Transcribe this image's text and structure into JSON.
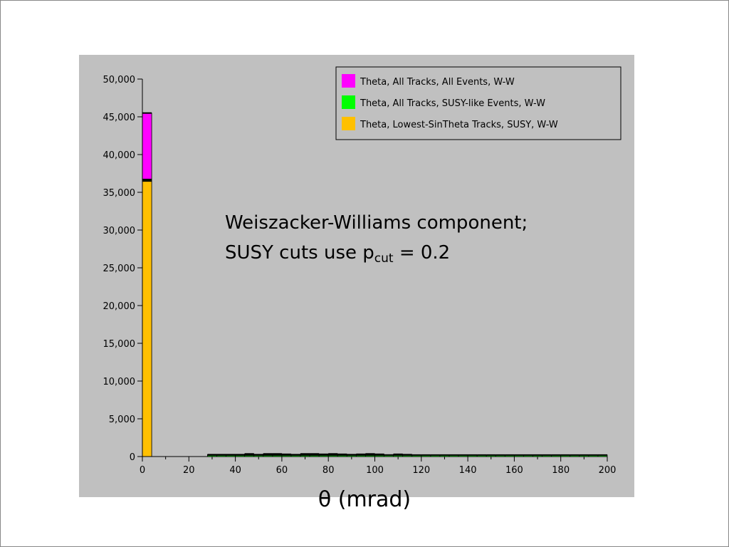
{
  "chart_data": {
    "type": "bar",
    "title": "",
    "xlabel": "θ (mrad)",
    "ylabel": "",
    "xlim": [
      0,
      200
    ],
    "ylim": [
      0,
      50000
    ],
    "x_ticks": [
      "0",
      "20",
      "40",
      "60",
      "80",
      "100",
      "120",
      "140",
      "160",
      "180",
      "200"
    ],
    "y_ticks": [
      "0",
      "5,000",
      "10,000",
      "15,000",
      "20,000",
      "25,000",
      "30,000",
      "35,000",
      "40,000",
      "45,000",
      "50,000"
    ],
    "y_tick_values": [
      0,
      5000,
      10000,
      15000,
      20000,
      25000,
      30000,
      35000,
      40000,
      45000,
      50000
    ],
    "bin_width": 4,
    "stacked": true,
    "grid": false,
    "legend_position": "top-right",
    "series": [
      {
        "name": "Theta, All Tracks, All Events, W-W",
        "color": "#ff00ff",
        "bins": [
          [
            0,
            45500
          ],
          [
            28,
            250
          ],
          [
            32,
            250
          ],
          [
            36,
            250
          ],
          [
            40,
            250
          ],
          [
            44,
            350
          ],
          [
            48,
            250
          ],
          [
            52,
            350
          ],
          [
            56,
            350
          ],
          [
            60,
            300
          ],
          [
            64,
            250
          ],
          [
            68,
            350
          ],
          [
            72,
            350
          ],
          [
            76,
            300
          ],
          [
            80,
            350
          ],
          [
            84,
            300
          ],
          [
            88,
            250
          ],
          [
            92,
            300
          ],
          [
            96,
            350
          ],
          [
            100,
            300
          ],
          [
            104,
            200
          ],
          [
            108,
            300
          ],
          [
            112,
            250
          ]
        ]
      },
      {
        "name": "Theta, All Tracks, SUSY-like Events, W-W",
        "color": "#00ff00",
        "bins": [
          [
            0,
            36700
          ],
          [
            28,
            200
          ],
          [
            32,
            200
          ],
          [
            36,
            200
          ],
          [
            40,
            200
          ],
          [
            44,
            200
          ],
          [
            48,
            200
          ],
          [
            52,
            200
          ],
          [
            56,
            200
          ],
          [
            60,
            200
          ],
          [
            64,
            200
          ],
          [
            68,
            200
          ],
          [
            72,
            200
          ],
          [
            76,
            200
          ],
          [
            80,
            200
          ],
          [
            84,
            200
          ],
          [
            88,
            200
          ],
          [
            92,
            200
          ],
          [
            96,
            200
          ],
          [
            100,
            200
          ],
          [
            104,
            200
          ],
          [
            108,
            200
          ],
          [
            112,
            200
          ],
          [
            116,
            200
          ],
          [
            120,
            200
          ],
          [
            124,
            200
          ],
          [
            128,
            200
          ],
          [
            132,
            200
          ],
          [
            136,
            200
          ],
          [
            140,
            200
          ],
          [
            144,
            200
          ],
          [
            148,
            200
          ],
          [
            152,
            200
          ],
          [
            156,
            200
          ],
          [
            160,
            200
          ],
          [
            164,
            200
          ],
          [
            168,
            200
          ],
          [
            172,
            200
          ],
          [
            176,
            200
          ],
          [
            180,
            200
          ],
          [
            184,
            200
          ],
          [
            188,
            200
          ],
          [
            192,
            200
          ],
          [
            196,
            200
          ]
        ]
      },
      {
        "name": "Theta, Lowest-SinTheta Tracks, SUSY, W-W",
        "color": "#ffc000",
        "bins": [
          [
            0,
            36500
          ]
        ]
      }
    ]
  },
  "annotation": {
    "line1": "Weiszacker-Williams component;",
    "line2_prefix": "SUSY cuts use p",
    "line2_sub": "cut",
    "line2_suffix": " = 0.2"
  },
  "x_axis_title": "θ (mrad)"
}
